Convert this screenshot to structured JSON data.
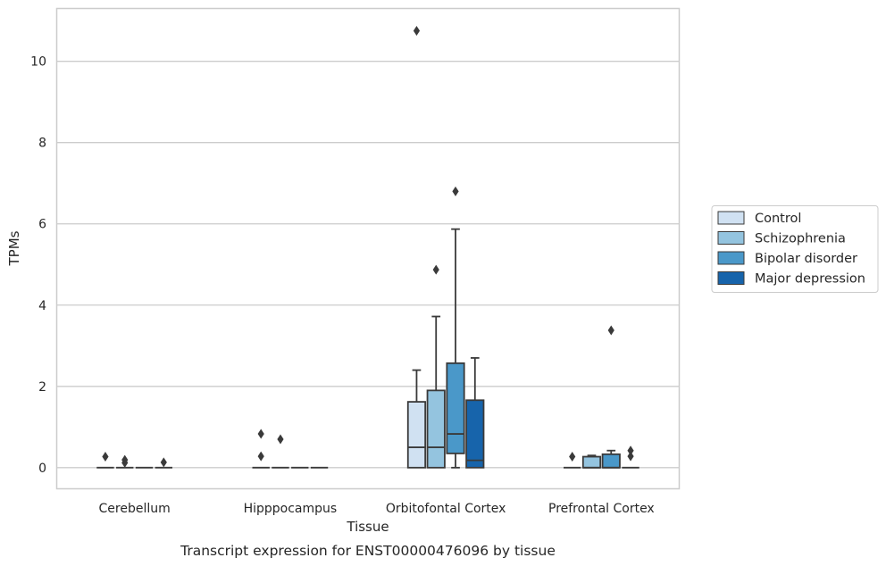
{
  "chart_data": {
    "type": "box",
    "caption": "Transcript expression for ENST00000476096 by tissue",
    "xlabel": "Tissue",
    "ylabel": "TPMs",
    "ylim": [
      -0.52,
      11.3
    ],
    "yticks": [
      0,
      2,
      4,
      6,
      8,
      10
    ],
    "grid": true,
    "legend_position": "right",
    "categories": [
      "Cerebellum",
      "Hipppocampus",
      "Orbitofontal Cortex",
      "Prefrontal Cortex"
    ],
    "series": [
      {
        "name": "Control",
        "color": "#d0e1f2",
        "boxes": [
          {
            "whislo": 0,
            "q1": 0,
            "med": 0,
            "q3": 0,
            "whishi": 0,
            "fliers": [
              0.27
            ]
          },
          {
            "whislo": 0,
            "q1": 0,
            "med": 0,
            "q3": 0,
            "whishi": 0,
            "fliers": [
              0.28,
              0.83
            ]
          },
          {
            "whislo": 0,
            "q1": 0,
            "med": 0.5,
            "q3": 1.62,
            "whishi": 2.4,
            "fliers": [
              10.75
            ]
          },
          {
            "whislo": 0,
            "q1": 0,
            "med": 0,
            "q3": 0,
            "whishi": 0,
            "fliers": [
              0.27
            ]
          }
        ]
      },
      {
        "name": "Schizophrenia",
        "color": "#94c4df",
        "boxes": [
          {
            "whislo": 0,
            "q1": 0,
            "med": 0,
            "q3": 0,
            "whishi": 0,
            "fliers": [
              0.12,
              0.19
            ]
          },
          {
            "whislo": 0,
            "q1": 0,
            "med": 0,
            "q3": 0,
            "whishi": 0,
            "fliers": [
              0.7
            ]
          },
          {
            "whislo": 0,
            "q1": 0,
            "med": 0.5,
            "q3": 1.9,
            "whishi": 3.72,
            "fliers": [
              4.87
            ]
          },
          {
            "whislo": 0,
            "q1": 0,
            "med": 0,
            "q3": 0.27,
            "whishi": 0.3,
            "fliers": []
          }
        ]
      },
      {
        "name": "Bipolar disorder",
        "color": "#4a98c9",
        "boxes": [
          {
            "whislo": 0,
            "q1": 0,
            "med": 0,
            "q3": 0,
            "whishi": 0,
            "fliers": []
          },
          {
            "whislo": 0,
            "q1": 0,
            "med": 0,
            "q3": 0,
            "whishi": 0,
            "fliers": []
          },
          {
            "whislo": 0,
            "q1": 0.35,
            "med": 0.83,
            "q3": 2.57,
            "whishi": 5.87,
            "fliers": [
              6.8
            ]
          },
          {
            "whislo": 0,
            "q1": 0,
            "med": 0,
            "q3": 0.33,
            "whishi": 0.42,
            "fliers": [
              3.38
            ]
          }
        ]
      },
      {
        "name": "Major depression",
        "color": "#1764ab",
        "boxes": [
          {
            "whislo": 0,
            "q1": 0,
            "med": 0,
            "q3": 0,
            "whishi": 0,
            "fliers": [
              0.13
            ]
          },
          {
            "whislo": 0,
            "q1": 0,
            "med": 0,
            "q3": 0,
            "whishi": 0,
            "fliers": []
          },
          {
            "whislo": 0,
            "q1": 0,
            "med": 0.18,
            "q3": 1.66,
            "whishi": 2.7,
            "fliers": []
          },
          {
            "whislo": 0,
            "q1": 0,
            "med": 0,
            "q3": 0,
            "whishi": 0,
            "fliers": [
              0.28,
              0.42
            ]
          }
        ]
      }
    ]
  }
}
